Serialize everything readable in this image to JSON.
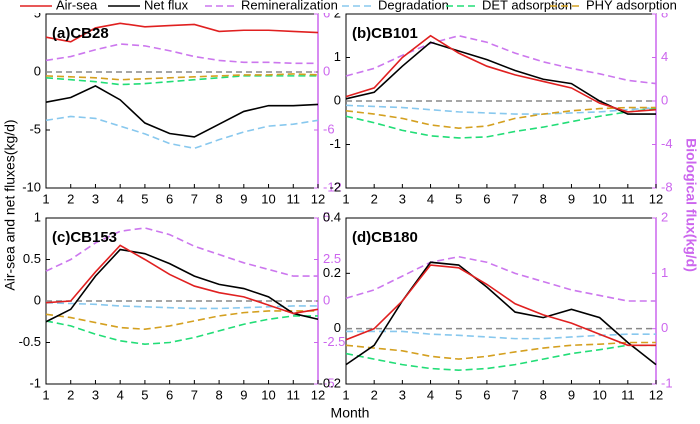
{
  "xlabel": "Month",
  "ylabel": "Air-sea and net fluxes(kg/d)",
  "y2label": "Biological flux(kg/d)",
  "chart_data": [
    {
      "type": "line",
      "title": "(a)CB28",
      "x": [
        1,
        2,
        3,
        4,
        5,
        6,
        7,
        8,
        9,
        10,
        11,
        12
      ],
      "xlim": [
        1,
        12
      ],
      "xticks": [
        1,
        2,
        3,
        4,
        5,
        6,
        7,
        8,
        9,
        10,
        11,
        12
      ],
      "ylim": [
        -10,
        5
      ],
      "yticks": [
        -10,
        -5,
        0,
        5
      ],
      "y2lim": [
        -12,
        6
      ],
      "y2ticks": [
        -12,
        -6,
        0,
        6
      ],
      "zero_line": true,
      "series": [
        {
          "name": "Air-sea",
          "color": "#e02020",
          "linestyle": "solid",
          "values": [
            3.0,
            2.6,
            3.8,
            4.2,
            3.9,
            4.0,
            4.1,
            3.5,
            3.6,
            3.6,
            3.5,
            3.4
          ]
        },
        {
          "name": "Net flux",
          "color": "#000000",
          "linestyle": "solid",
          "values": [
            -2.6,
            -2.2,
            -1.2,
            -2.4,
            -4.4,
            -5.3,
            -5.6,
            -4.5,
            -3.4,
            -2.9,
            -2.9,
            -2.8
          ]
        },
        {
          "name": "Remineralization",
          "color": "#cc77ee",
          "linestyle": "dashed",
          "axis": "y2",
          "values": [
            1.2,
            1.6,
            2.3,
            2.9,
            2.7,
            2.2,
            1.6,
            1.2,
            1.0,
            1.0,
            0.9,
            0.9
          ]
        },
        {
          "name": "Degradation",
          "color": "#88c8ee",
          "linestyle": "dashed",
          "axis": "y2",
          "values": [
            -5.0,
            -4.6,
            -4.8,
            -5.6,
            -6.4,
            -7.4,
            -7.9,
            -7.0,
            -6.2,
            -5.6,
            -5.4,
            -5.0
          ]
        },
        {
          "name": "DET adsorption",
          "color": "#22dd77",
          "linestyle": "dashed",
          "axis": "y2",
          "values": [
            -0.6,
            -0.8,
            -1.0,
            -1.3,
            -1.2,
            -1.0,
            -0.8,
            -0.6,
            -0.4,
            -0.4,
            -0.4,
            -0.4
          ]
        },
        {
          "name": "PHY adsorption",
          "color": "#d4a020",
          "linestyle": "dashed",
          "axis": "y2",
          "values": [
            -0.4,
            -0.5,
            -0.6,
            -0.8,
            -0.7,
            -0.6,
            -0.5,
            -0.4,
            -0.3,
            -0.3,
            -0.2,
            -0.3
          ]
        }
      ]
    },
    {
      "type": "line",
      "title": "(b)CB101",
      "x": [
        1,
        2,
        3,
        4,
        5,
        6,
        7,
        8,
        9,
        10,
        11,
        12
      ],
      "xlim": [
        1,
        12
      ],
      "xticks": [
        1,
        2,
        3,
        4,
        5,
        6,
        7,
        8,
        9,
        10,
        11,
        12
      ],
      "ylim": [
        -2,
        2
      ],
      "yticks": [
        -2,
        -1,
        0,
        1,
        2
      ],
      "y2lim": [
        -8,
        8
      ],
      "y2ticks": [
        -8,
        -4,
        0,
        4,
        8
      ],
      "zero_line": true,
      "series": [
        {
          "color": "#e02020",
          "linestyle": "solid",
          "values": [
            0.1,
            0.3,
            1.0,
            1.5,
            1.1,
            0.8,
            0.6,
            0.45,
            0.3,
            -0.05,
            -0.25,
            -0.2
          ]
        },
        {
          "color": "#000000",
          "linestyle": "solid",
          "values": [
            0.05,
            0.2,
            0.8,
            1.35,
            1.15,
            0.95,
            0.7,
            0.5,
            0.4,
            0.0,
            -0.3,
            -0.3
          ]
        },
        {
          "color": "#cc77ee",
          "linestyle": "dashed",
          "axis": "y2",
          "values": [
            2.3,
            3.0,
            4.2,
            5.3,
            6.0,
            5.4,
            4.4,
            3.6,
            3.0,
            2.5,
            1.9,
            1.6
          ]
        },
        {
          "color": "#88c8ee",
          "linestyle": "dashed",
          "axis": "y2",
          "values": [
            -0.4,
            -0.5,
            -0.6,
            -0.8,
            -1.0,
            -1.1,
            -1.2,
            -1.2,
            -1.1,
            -1.0,
            -0.8,
            -0.6
          ]
        },
        {
          "color": "#22dd77",
          "linestyle": "dashed",
          "axis": "y2",
          "values": [
            -1.4,
            -2.0,
            -2.7,
            -3.2,
            -3.4,
            -3.3,
            -2.8,
            -2.4,
            -1.9,
            -1.4,
            -1.0,
            -0.7
          ]
        },
        {
          "color": "#d4a020",
          "linestyle": "dashed",
          "axis": "y2",
          "values": [
            -0.9,
            -1.2,
            -1.6,
            -2.2,
            -2.5,
            -2.3,
            -1.6,
            -1.2,
            -0.9,
            -0.7,
            -0.6,
            -0.6
          ]
        }
      ]
    },
    {
      "type": "line",
      "title": "(c)CB153",
      "x": [
        1,
        2,
        3,
        4,
        5,
        6,
        7,
        8,
        9,
        10,
        11,
        12
      ],
      "xlim": [
        1,
        12
      ],
      "xticks": [
        1,
        2,
        3,
        4,
        5,
        6,
        7,
        8,
        9,
        10,
        11,
        12
      ],
      "ylim": [
        -1,
        1
      ],
      "yticks": [
        -1,
        -0.5,
        0,
        0.5,
        1
      ],
      "y2lim": [
        -5,
        5
      ],
      "y2ticks": [
        -5,
        -2.5,
        0,
        2.5,
        5
      ],
      "zero_line": true,
      "series": [
        {
          "color": "#e02020",
          "linestyle": "solid",
          "values": [
            -0.02,
            0.0,
            0.35,
            0.67,
            0.5,
            0.32,
            0.18,
            0.1,
            0.05,
            -0.05,
            -0.15,
            -0.1
          ]
        },
        {
          "color": "#000000",
          "linestyle": "solid",
          "values": [
            -0.25,
            -0.1,
            0.3,
            0.62,
            0.57,
            0.45,
            0.3,
            0.2,
            0.15,
            0.05,
            -0.15,
            -0.22
          ]
        },
        {
          "color": "#cc77ee",
          "linestyle": "dashed",
          "axis": "y2",
          "values": [
            1.8,
            2.5,
            3.5,
            4.2,
            4.4,
            4.0,
            3.3,
            2.8,
            2.3,
            1.9,
            1.5,
            1.5
          ]
        },
        {
          "color": "#88c8ee",
          "linestyle": "dashed",
          "axis": "y2",
          "values": [
            -0.1,
            -0.15,
            -0.2,
            -0.3,
            -0.35,
            -0.4,
            -0.45,
            -0.45,
            -0.4,
            -0.35,
            -0.3,
            -0.3
          ]
        },
        {
          "color": "#22dd77",
          "linestyle": "dashed",
          "axis": "y2",
          "values": [
            -1.2,
            -1.5,
            -2.0,
            -2.4,
            -2.6,
            -2.5,
            -2.2,
            -1.8,
            -1.4,
            -1.1,
            -0.9,
            -0.9
          ]
        },
        {
          "color": "#d4a020",
          "linestyle": "dashed",
          "axis": "y2",
          "values": [
            -0.8,
            -1.0,
            -1.3,
            -1.6,
            -1.7,
            -1.5,
            -1.2,
            -0.9,
            -0.7,
            -0.6,
            -0.6,
            -0.6
          ]
        }
      ]
    },
    {
      "type": "line",
      "title": "(d)CB180",
      "x": [
        1,
        2,
        3,
        4,
        5,
        6,
        7,
        8,
        9,
        10,
        11,
        12
      ],
      "xlim": [
        1,
        12
      ],
      "xticks": [
        1,
        2,
        3,
        4,
        5,
        6,
        7,
        8,
        9,
        10,
        11,
        12
      ],
      "ylim": [
        -0.2,
        0.4
      ],
      "yticks": [
        -0.2,
        0,
        0.2,
        0.4
      ],
      "y2lim": [
        -1,
        2
      ],
      "y2ticks": [
        -1,
        0,
        1,
        2
      ],
      "zero_line": true,
      "series": [
        {
          "color": "#e02020",
          "linestyle": "solid",
          "values": [
            -0.04,
            0.0,
            0.1,
            0.23,
            0.22,
            0.16,
            0.09,
            0.05,
            0.02,
            -0.02,
            -0.06,
            -0.06
          ]
        },
        {
          "color": "#000000",
          "linestyle": "solid",
          "values": [
            -0.13,
            -0.06,
            0.1,
            0.24,
            0.23,
            0.15,
            0.06,
            0.04,
            0.07,
            0.04,
            -0.05,
            -0.13
          ]
        },
        {
          "color": "#cc77ee",
          "linestyle": "dashed",
          "axis": "y2",
          "values": [
            0.55,
            0.7,
            0.95,
            1.2,
            1.3,
            1.2,
            1.0,
            0.85,
            0.7,
            0.6,
            0.5,
            0.5
          ]
        },
        {
          "color": "#88c8ee",
          "linestyle": "dashed",
          "axis": "y2",
          "values": [
            -0.05,
            -0.05,
            -0.05,
            -0.1,
            -0.12,
            -0.15,
            -0.18,
            -0.18,
            -0.15,
            -0.12,
            -0.1,
            -0.1
          ]
        },
        {
          "color": "#22dd77",
          "linestyle": "dashed",
          "axis": "y2",
          "values": [
            -0.45,
            -0.55,
            -0.65,
            -0.72,
            -0.75,
            -0.72,
            -0.65,
            -0.55,
            -0.45,
            -0.38,
            -0.3,
            -0.3
          ]
        },
        {
          "color": "#d4a020",
          "linestyle": "dashed",
          "axis": "y2",
          "values": [
            -0.3,
            -0.35,
            -0.4,
            -0.5,
            -0.55,
            -0.5,
            -0.42,
            -0.35,
            -0.3,
            -0.28,
            -0.25,
            -0.25
          ]
        }
      ]
    }
  ]
}
